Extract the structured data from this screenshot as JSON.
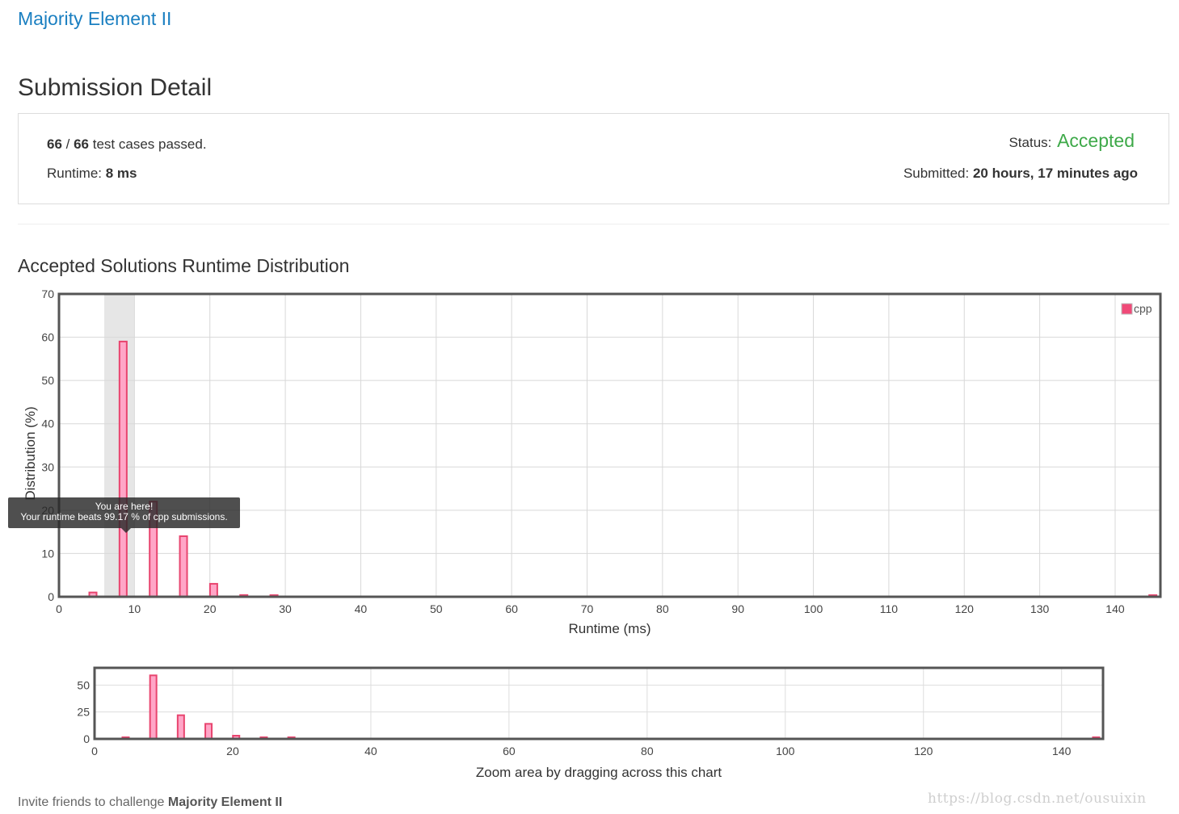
{
  "problem_link": "Majority Element II",
  "page_title": "Submission Detail",
  "detail": {
    "passed": "66",
    "separator": " / ",
    "total": "66",
    "passed_suffix": " test cases passed.",
    "runtime_label": "Runtime: ",
    "runtime_value": "8 ms",
    "status_label": "Status: ",
    "status_value": "Accepted",
    "submitted_label": "Submitted: ",
    "submitted_value": "20 hours, 17 minutes ago"
  },
  "section_title": "Accepted Solutions Runtime Distribution",
  "tooltip": {
    "line1": "You are here!",
    "line2": "Your runtime beats 99.17 % of cpp submissions."
  },
  "colors": {
    "bar_fill": "#ffa6c7",
    "bar_stroke": "#e8456f",
    "accepted": "#3ea949",
    "link": "#1a7fc1",
    "highlight_band": "#e6e6e6",
    "legend_swatch": "#f04a78"
  },
  "chart_data": [
    {
      "type": "bar",
      "xlabel": "Runtime (ms)",
      "ylabel": "Distribution (%)",
      "xlim": [
        0,
        146
      ],
      "ylim": [
        0,
        70
      ],
      "x_ticks": [
        0,
        10,
        20,
        30,
        40,
        50,
        60,
        70,
        80,
        90,
        100,
        110,
        120,
        130,
        140
      ],
      "y_ticks": [
        0,
        10,
        20,
        30,
        40,
        50,
        60,
        70
      ],
      "grid": true,
      "legend": "top-right",
      "highlight_range": [
        6,
        10
      ],
      "series": [
        {
          "name": "cpp",
          "x": [
            4.5,
            8.5,
            12.5,
            16.5,
            20.5,
            24.5,
            28.5,
            145
          ],
          "values": [
            1,
            59,
            22,
            14,
            3,
            0.4,
            0.3,
            0.2
          ]
        }
      ]
    },
    {
      "type": "bar",
      "xlabel": "Zoom area by dragging across this chart",
      "xlim": [
        0,
        146
      ],
      "ylim": [
        0,
        66
      ],
      "x_ticks": [
        0,
        20,
        40,
        60,
        80,
        100,
        120,
        140
      ],
      "y_ticks": [
        0,
        25,
        50
      ],
      "grid": true,
      "series": [
        {
          "x": [
            4.5,
            8.5,
            12.5,
            16.5,
            20.5,
            24.5,
            28.5,
            145
          ],
          "values": [
            1,
            59,
            22,
            14,
            3,
            0.4,
            0.3,
            0.2
          ]
        }
      ]
    }
  ],
  "invite": {
    "prefix": "Invite friends to challenge ",
    "problem": "Majority Element II"
  },
  "watermark": "https://blog.csdn.net/ousuixin"
}
